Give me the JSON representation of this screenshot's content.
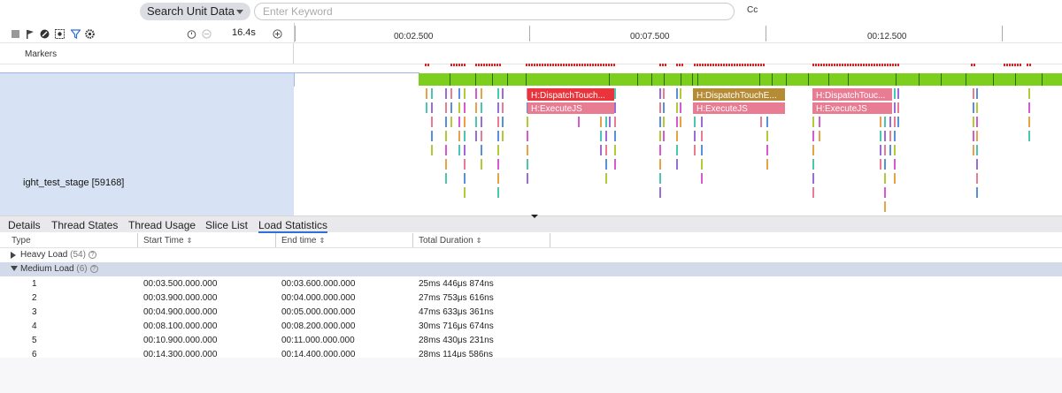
{
  "search": {
    "scope_label": "Search Unit Data",
    "placeholder": "Enter Keyword",
    "case_toggle": "Cc"
  },
  "toolbar": {
    "icons": [
      "stop-icon",
      "flag-icon",
      "record-icon",
      "capture-icon",
      "filter-icon",
      "settings-icon"
    ],
    "zoom_value": "16.4s"
  },
  "timeline": {
    "ticks": [
      "00:02.500",
      "00:07.500",
      "00:12.500"
    ]
  },
  "lanes": {
    "markers_label": "Markers",
    "process_label": "ight_test_stage [59168]"
  },
  "slices": [
    {
      "name": "H:DispatchTouch...",
      "sub": "H:ExecuteJS",
      "color": "#e8343a",
      "sub_color": "#e87c92"
    },
    {
      "name": "H:DispatchTouchE...",
      "sub": "H:ExecuteJS",
      "color": "#b58b36",
      "sub_color": "#e87c92"
    },
    {
      "name": "H:DispatchTouc...",
      "sub": "H:ExecuteJS",
      "color": "#e87c92",
      "sub_color": "#e87c92"
    }
  ],
  "tabs": [
    "Details",
    "Thread States",
    "Thread Usage",
    "Slice List",
    "Load Statistics"
  ],
  "active_tab": "Load Statistics",
  "table": {
    "columns": [
      "Type",
      "Start Time",
      "End time",
      "Total Duration"
    ],
    "groups": [
      {
        "label": "Heavy Load",
        "count": "(54)",
        "expanded": false
      },
      {
        "label": "Medium Load",
        "count": "(6)",
        "expanded": true
      }
    ],
    "rows": [
      {
        "idx": "1",
        "start": "00:03.500.000.000",
        "end": "00:03.600.000.000",
        "duration": "25ms 446μs 874ns"
      },
      {
        "idx": "2",
        "start": "00:03.900.000.000",
        "end": "00:04.000.000.000",
        "duration": "27ms 753μs 616ns"
      },
      {
        "idx": "3",
        "start": "00:04.900.000.000",
        "end": "00:05.000.000.000",
        "duration": "47ms 633μs 361ns"
      },
      {
        "idx": "4",
        "start": "00:08.100.000.000",
        "end": "00:08.200.000.000",
        "duration": "30ms 716μs 674ns"
      },
      {
        "idx": "5",
        "start": "00:10.900.000.000",
        "end": "00:11.000.000.000",
        "duration": "28ms 430μs 231ns"
      },
      {
        "idx": "6",
        "start": "00:14.300.000.000",
        "end": "00:14.400.000.000",
        "duration": "28ms 114μs 586ns"
      }
    ]
  }
}
